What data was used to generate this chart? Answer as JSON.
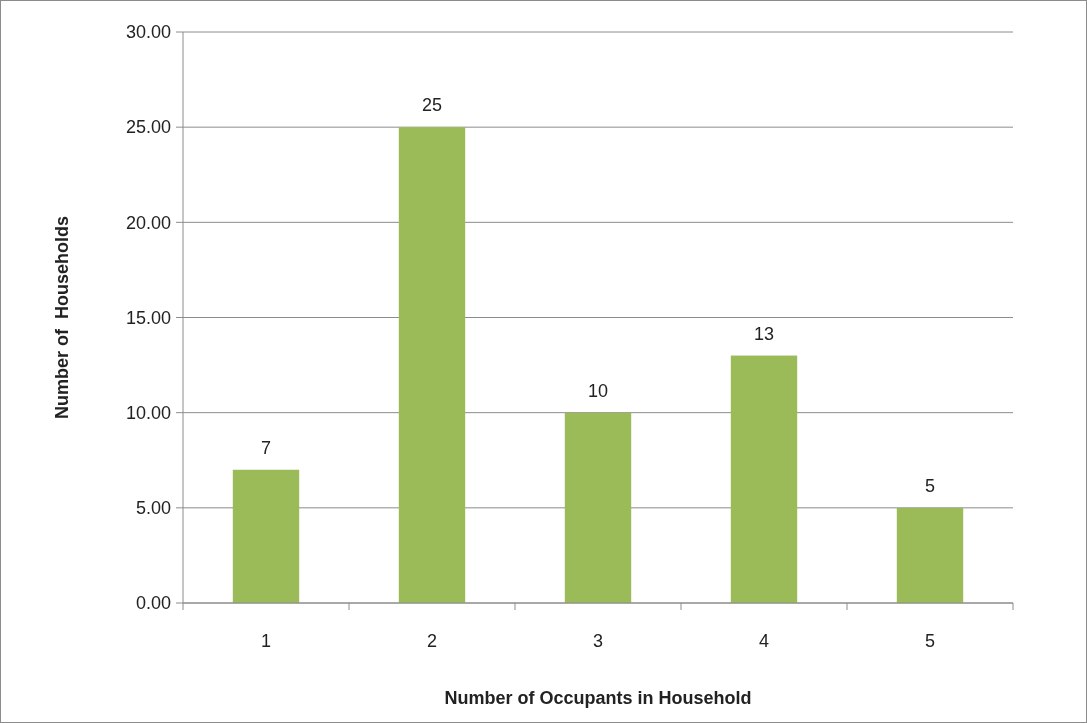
{
  "chart_data": {
    "type": "bar",
    "xlabel": "Number of Occupants in Household",
    "ylabel": "Number of  Households",
    "categories": [
      "1",
      "2",
      "3",
      "4",
      "5"
    ],
    "values": [
      7,
      25,
      10,
      13,
      5
    ],
    "color": "#9bbb59",
    "ylim": [
      0,
      30
    ],
    "yticks": [
      {
        "value": 0,
        "label": "0.00"
      },
      {
        "value": 5,
        "label": "5.00"
      },
      {
        "value": 10,
        "label": "10.00"
      },
      {
        "value": 15,
        "label": "15.00"
      },
      {
        "value": 20,
        "label": "20.00"
      },
      {
        "value": 25,
        "label": "25.00"
      },
      {
        "value": 30,
        "label": "30.00"
      }
    ],
    "grid": "y",
    "data_labels": true
  }
}
